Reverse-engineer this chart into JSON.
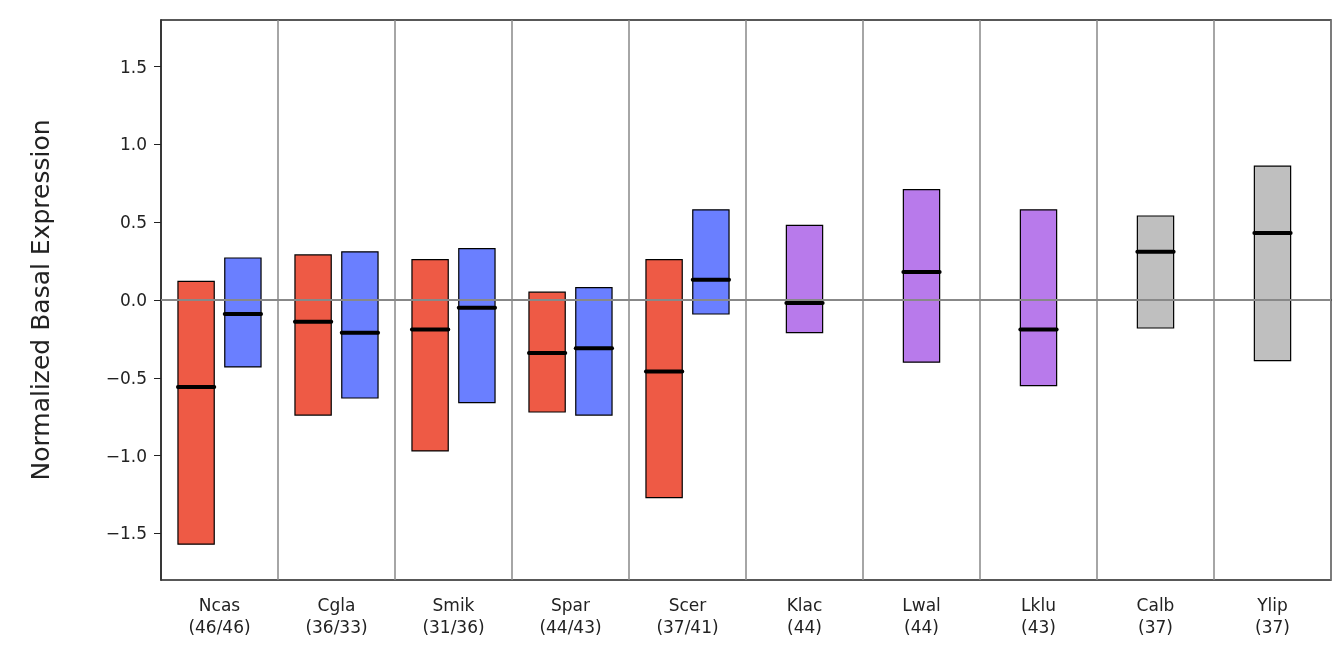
{
  "chart_data": {
    "type": "box",
    "ylabel": "Normalized Basal Expression",
    "categories": [
      "Ncas\n(46/46)",
      "Cgla\n(36/33)",
      "Smik\n(31/36)",
      "Spar\n(44/43)",
      "Scer\n(37/41)",
      "Klac\n(44)",
      "Lwal\n(44)",
      "Lklu\n(43)",
      "Calb\n(37)",
      "Ylip\n(37)"
    ],
    "series": [
      {
        "color": "#ee5a45",
        "boxes": [
          {
            "low": -1.57,
            "q1": -1.57,
            "median": -0.56,
            "q3": 0.12,
            "high": 0.12
          },
          {
            "low": -0.74,
            "q1": -0.74,
            "median": -0.14,
            "q3": 0.29,
            "high": 0.29
          },
          {
            "low": -0.97,
            "q1": -0.97,
            "median": -0.19,
            "q3": 0.26,
            "high": 0.26
          },
          {
            "low": -0.72,
            "q1": -0.72,
            "median": -0.34,
            "q3": 0.05,
            "high": 0.05
          },
          {
            "low": -1.27,
            "q1": -1.27,
            "median": -0.46,
            "q3": 0.26,
            "high": 0.26
          },
          null,
          null,
          null,
          null,
          null
        ]
      },
      {
        "color": "#6a7fff",
        "boxes": [
          {
            "low": -0.43,
            "q1": -0.43,
            "median": -0.09,
            "q3": 0.27,
            "high": 0.27
          },
          {
            "low": -0.63,
            "q1": -0.63,
            "median": -0.21,
            "q3": 0.31,
            "high": 0.31
          },
          {
            "low": -0.66,
            "q1": -0.66,
            "median": -0.05,
            "q3": 0.33,
            "high": 0.33
          },
          {
            "low": -0.74,
            "q1": -0.74,
            "median": -0.31,
            "q3": 0.08,
            "high": 0.08
          },
          {
            "low": -0.09,
            "q1": -0.09,
            "median": 0.13,
            "q3": 0.58,
            "high": 0.58
          },
          null,
          null,
          null,
          null,
          null
        ]
      },
      {
        "color": "#b87aeb",
        "boxes": [
          null,
          null,
          null,
          null,
          null,
          {
            "low": -0.21,
            "q1": -0.21,
            "median": -0.02,
            "q3": 0.48,
            "high": 0.48
          },
          {
            "low": -0.4,
            "q1": -0.4,
            "median": 0.18,
            "q3": 0.71,
            "high": 0.71
          },
          {
            "low": -0.55,
            "q1": -0.55,
            "median": -0.19,
            "q3": 0.58,
            "high": 0.58
          },
          null,
          null
        ]
      },
      {
        "color": "#bfbfbf",
        "boxes": [
          null,
          null,
          null,
          null,
          null,
          null,
          null,
          null,
          {
            "low": -0.18,
            "q1": -0.18,
            "median": 0.31,
            "q3": 0.54,
            "high": 0.54
          },
          {
            "low": -0.39,
            "q1": -0.39,
            "median": 0.43,
            "q3": 0.86,
            "high": 0.86
          }
        ]
      }
    ],
    "ylim": [
      -1.8,
      1.8
    ],
    "yticks": [
      {
        "value": -1.5,
        "label": "−1.5"
      },
      {
        "value": -1,
        "label": "−1.0"
      },
      {
        "value": -0.5,
        "label": "−0.5"
      },
      {
        "value": 0,
        "label": "0.0"
      },
      {
        "value": 0.5,
        "label": "0.5"
      },
      {
        "value": 1,
        "label": "1.0"
      },
      {
        "value": 1.5,
        "label": "1.5"
      }
    ],
    "ref_lines": [
      {
        "axis": "y",
        "value": 0,
        "color": "#888888"
      }
    ],
    "grid": "x"
  }
}
